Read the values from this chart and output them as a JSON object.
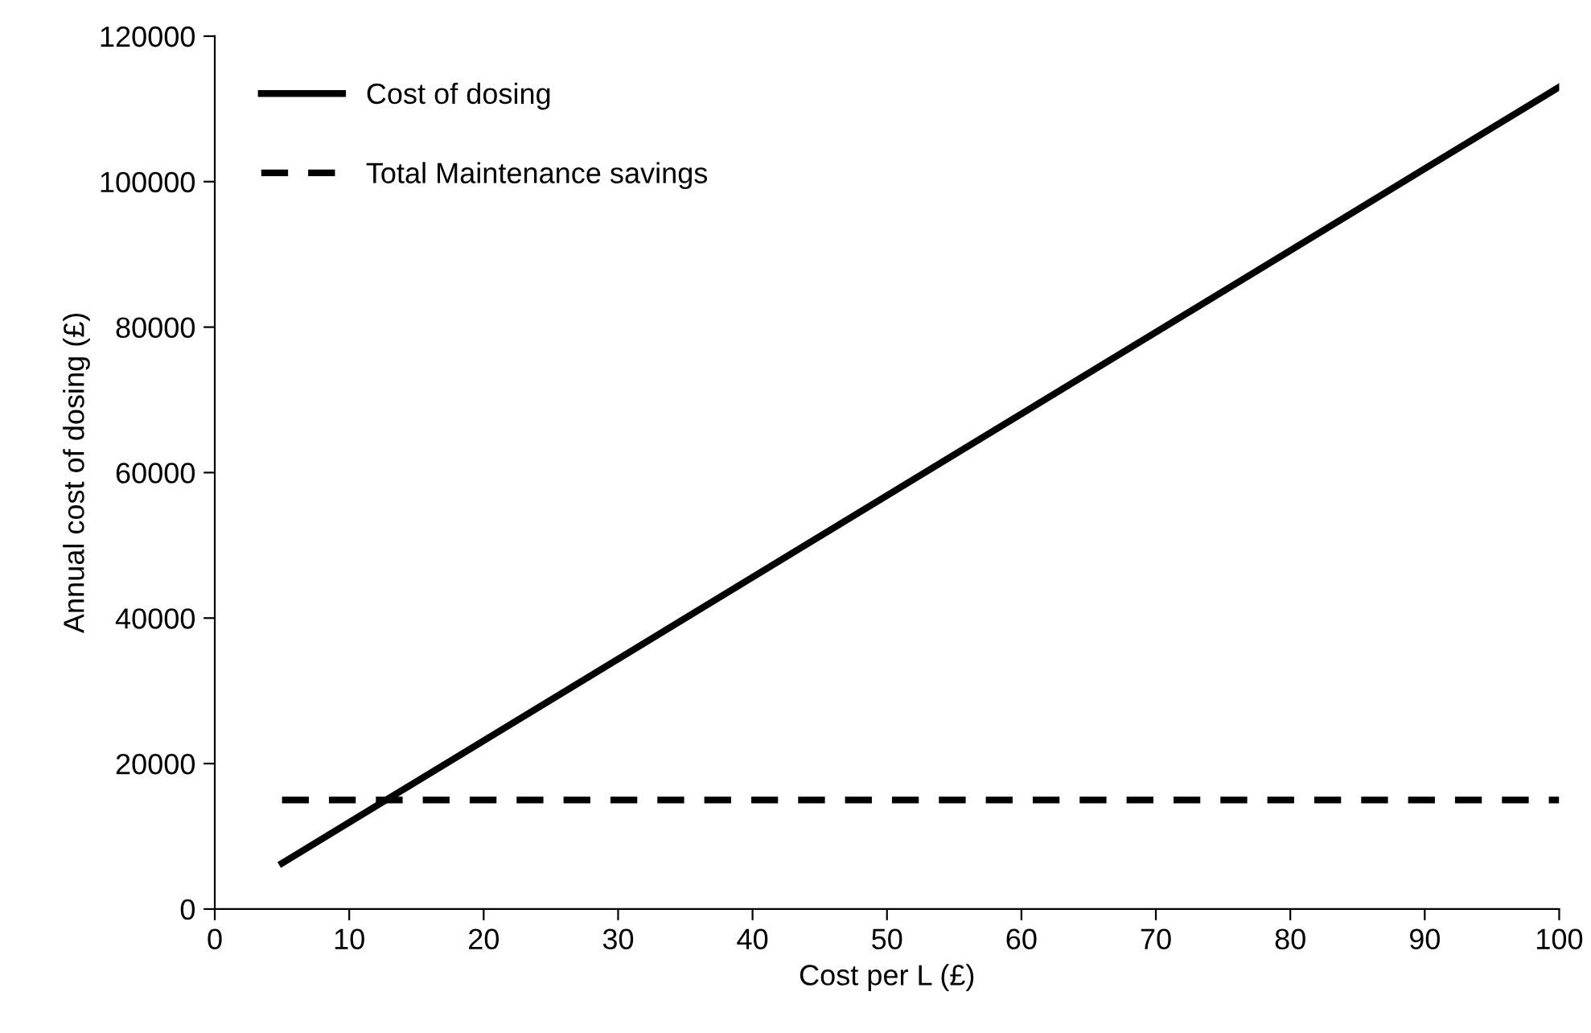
{
  "chart_data": {
    "type": "line",
    "xlabel": "Cost per L (£)",
    "ylabel": "Annual cost of dosing (£)",
    "x": [
      5,
      100
    ],
    "series": [
      {
        "name": "Cost of dosing",
        "color": "#000000",
        "values": [
          6300,
          113000
        ],
        "line_style": "solid"
      },
      {
        "name": "Total Maintenance savings",
        "color": "#000000",
        "values": [
          15000,
          15000
        ],
        "line_style": "dashed"
      }
    ],
    "xlim": [
      0,
      100
    ],
    "xticks": [
      0,
      10,
      20,
      30,
      40,
      50,
      60,
      70,
      80,
      90,
      100
    ],
    "ylim": [
      0,
      120000
    ],
    "yticks": [
      0,
      20000,
      40000,
      60000,
      80000,
      100000,
      120000
    ],
    "grid": false,
    "legend": "top left",
    "marker": "none"
  }
}
